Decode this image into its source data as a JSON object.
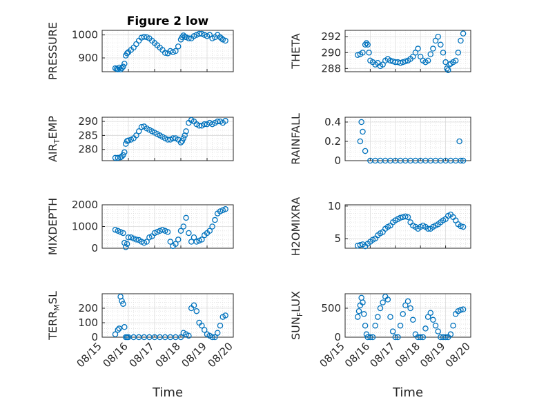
{
  "figure": {
    "title": "Figure 2 low",
    "xlabel": "Time",
    "marker_color": "#0072BD"
  },
  "chart_data": [
    {
      "type": "scatter",
      "ylabel": "PRESSURE",
      "title": "Figure 2 low",
      "xlim": [
        0,
        5
      ],
      "ylim": [
        840,
        1020
      ],
      "yticks": [
        900,
        1000
      ],
      "xticks": [
        "08/15",
        "08/16",
        "08/17",
        "08/18",
        "08/19",
        "08/20"
      ],
      "grid": true,
      "x": [
        0.5,
        0.55,
        0.6,
        0.65,
        0.7,
        0.75,
        0.8,
        0.85,
        0.9,
        0.95,
        1.0,
        1.1,
        1.2,
        1.3,
        1.4,
        1.5,
        1.6,
        1.7,
        1.8,
        1.9,
        2.0,
        2.1,
        2.2,
        2.3,
        2.4,
        2.5,
        2.6,
        2.7,
        2.8,
        2.9,
        3.0,
        3.05,
        3.1,
        3.15,
        3.2,
        3.3,
        3.4,
        3.5,
        3.6,
        3.7,
        3.8,
        3.9,
        4.0,
        4.1,
        4.2,
        4.3,
        4.4,
        4.5,
        4.55,
        4.6,
        4.7
      ],
      "y": [
        855,
        852,
        850,
        858,
        850,
        855,
        862,
        875,
        910,
        920,
        925,
        935,
        945,
        960,
        975,
        988,
        992,
        990,
        985,
        975,
        965,
        955,
        945,
        935,
        922,
        920,
        930,
        925,
        930,
        950,
        980,
        990,
        998,
        992,
        990,
        985,
        985,
        995,
        1000,
        1005,
        1005,
        1000,
        995,
        1000,
        985,
        990,
        1000,
        990,
        985,
        980,
        975
      ]
    },
    {
      "type": "scatter",
      "ylabel": "THETA",
      "xlim": [
        0,
        5
      ],
      "ylim": [
        287.6,
        292.8
      ],
      "yticks": [
        288,
        290,
        292
      ],
      "xticks": [
        "08/15",
        "08/16",
        "08/17",
        "08/18",
        "08/19",
        "08/20"
      ],
      "grid": true,
      "x": [
        0.5,
        0.6,
        0.7,
        0.8,
        0.85,
        0.9,
        0.95,
        1.0,
        1.1,
        1.2,
        1.3,
        1.4,
        1.5,
        1.6,
        1.7,
        1.8,
        1.9,
        2.0,
        2.1,
        2.2,
        2.3,
        2.4,
        2.5,
        2.6,
        2.7,
        2.8,
        2.9,
        3.0,
        3.1,
        3.2,
        3.3,
        3.4,
        3.5,
        3.6,
        3.7,
        3.8,
        3.9,
        4.0,
        4.05,
        4.1,
        4.15,
        4.2,
        4.3,
        4.4,
        4.5,
        4.6,
        4.7
      ],
      "y": [
        289.7,
        289.8,
        290.0,
        291.0,
        291.2,
        291.0,
        290.0,
        289.0,
        288.8,
        288.5,
        288.7,
        288.3,
        288.5,
        289.0,
        289.2,
        289.0,
        288.9,
        288.8,
        288.8,
        288.7,
        288.8,
        288.9,
        289.0,
        289.2,
        289.5,
        290.0,
        290.5,
        289.5,
        289.0,
        288.8,
        289.0,
        289.8,
        290.5,
        291.5,
        292.0,
        291.0,
        290.0,
        288.8,
        288.0,
        287.8,
        288.5,
        288.6,
        288.8,
        289.0,
        290.0,
        291.5,
        292.4
      ]
    },
    {
      "type": "scatter",
      "ylabel": "AIR_TEMP",
      "xlim": [
        0,
        5
      ],
      "ylim": [
        276,
        291.5
      ],
      "yticks": [
        280,
        285,
        290
      ],
      "xticks": [
        "08/15",
        "08/16",
        "08/17",
        "08/18",
        "08/19",
        "08/20"
      ],
      "grid": true,
      "x": [
        0.5,
        0.6,
        0.7,
        0.75,
        0.8,
        0.85,
        0.9,
        0.95,
        1.0,
        1.1,
        1.2,
        1.3,
        1.4,
        1.5,
        1.6,
        1.7,
        1.8,
        1.9,
        2.0,
        2.1,
        2.2,
        2.3,
        2.4,
        2.5,
        2.6,
        2.7,
        2.8,
        2.9,
        3.0,
        3.05,
        3.1,
        3.15,
        3.2,
        3.3,
        3.4,
        3.5,
        3.6,
        3.7,
        3.8,
        3.9,
        4.0,
        4.1,
        4.2,
        4.3,
        4.4,
        4.5,
        4.6,
        4.7
      ],
      "y": [
        277.0,
        277.0,
        277.2,
        277.5,
        278.0,
        279.0,
        282.0,
        283.0,
        283.2,
        283.5,
        284.0,
        285.0,
        286.5,
        288.0,
        288.2,
        287.5,
        287.0,
        286.5,
        286.0,
        285.5,
        285.0,
        284.5,
        284.0,
        283.5,
        283.5,
        284.0,
        284.0,
        283.5,
        282.5,
        283.0,
        284.0,
        285.0,
        286.5,
        289.5,
        290.5,
        290.0,
        289.0,
        288.5,
        288.5,
        289.0,
        289.0,
        289.5,
        289.0,
        289.5,
        290.0,
        290.0,
        289.5,
        290.2
      ]
    },
    {
      "type": "scatter",
      "ylabel": "RAINFALL",
      "xlim": [
        0,
        5
      ],
      "ylim": [
        0,
        0.45
      ],
      "yticks": [
        0,
        0.2,
        0.4
      ],
      "xticks": [
        "08/15",
        "08/16",
        "08/17",
        "08/18",
        "08/19",
        "08/20"
      ],
      "grid": true,
      "x": [
        0.6,
        0.65,
        0.7,
        0.8,
        1.0,
        1.2,
        1.4,
        1.6,
        1.8,
        2.0,
        2.2,
        2.4,
        2.6,
        2.8,
        3.0,
        3.2,
        3.4,
        3.6,
        3.8,
        4.0,
        4.2,
        4.4,
        4.6,
        4.7,
        4.55
      ],
      "y": [
        0.2,
        0.4,
        0.3,
        0.1,
        0,
        0,
        0,
        0,
        0,
        0,
        0,
        0,
        0,
        0,
        0,
        0,
        0,
        0,
        0,
        0,
        0,
        0,
        0,
        0,
        0.2
      ]
    },
    {
      "type": "scatter",
      "ylabel": "MIXDEPTH",
      "xlim": [
        0,
        5
      ],
      "ylim": [
        0,
        2000
      ],
      "yticks": [
        0,
        1000,
        2000
      ],
      "xticks": [
        "08/15",
        "08/16",
        "08/17",
        "08/18",
        "08/19",
        "08/20"
      ],
      "grid": true,
      "x": [
        0.5,
        0.6,
        0.7,
        0.8,
        0.85,
        0.9,
        0.95,
        1.0,
        1.1,
        1.2,
        1.3,
        1.4,
        1.5,
        1.6,
        1.7,
        1.8,
        1.9,
        2.0,
        2.1,
        2.2,
        2.3,
        2.4,
        2.5,
        2.6,
        2.7,
        2.8,
        2.9,
        3.0,
        3.1,
        3.2,
        3.3,
        3.4,
        3.5,
        3.6,
        3.7,
        3.8,
        3.9,
        4.0,
        4.1,
        4.2,
        4.3,
        4.4,
        4.5,
        4.6,
        4.7
      ],
      "y": [
        850,
        800,
        750,
        700,
        250,
        50,
        200,
        500,
        500,
        450,
        400,
        380,
        300,
        250,
        300,
        500,
        550,
        700,
        750,
        800,
        850,
        800,
        750,
        300,
        100,
        200,
        400,
        800,
        1000,
        1400,
        700,
        300,
        500,
        300,
        350,
        400,
        600,
        700,
        800,
        1000,
        1300,
        1600,
        1700,
        1750,
        1800
      ]
    },
    {
      "type": "scatter",
      "ylabel": "H2OMIXRA",
      "xlim": [
        0,
        5
      ],
      "ylim": [
        3.5,
        10.2
      ],
      "yticks": [
        5,
        10
      ],
      "xticks": [
        "08/15",
        "08/16",
        "08/17",
        "08/18",
        "08/19",
        "08/20"
      ],
      "grid": true,
      "x": [
        0.5,
        0.6,
        0.7,
        0.8,
        0.9,
        1.0,
        1.1,
        1.2,
        1.3,
        1.4,
        1.5,
        1.6,
        1.7,
        1.8,
        1.9,
        2.0,
        2.1,
        2.2,
        2.3,
        2.4,
        2.5,
        2.6,
        2.7,
        2.8,
        2.9,
        3.0,
        3.1,
        3.2,
        3.3,
        3.4,
        3.5,
        3.6,
        3.7,
        3.8,
        3.9,
        4.0,
        4.1,
        4.2,
        4.3,
        4.4,
        4.5,
        4.6,
        4.7
      ],
      "y": [
        3.9,
        4.0,
        4.1,
        3.8,
        4.2,
        4.5,
        4.8,
        5.0,
        5.5,
        5.8,
        6.0,
        6.5,
        6.8,
        7.0,
        7.5,
        7.8,
        8.0,
        8.2,
        8.3,
        8.4,
        8.3,
        7.5,
        7.0,
        6.8,
        6.5,
        6.8,
        7.0,
        6.8,
        6.5,
        6.5,
        6.8,
        7.0,
        7.2,
        7.5,
        7.8,
        8.0,
        8.5,
        8.7,
        8.3,
        7.8,
        7.2,
        6.9,
        6.8
      ]
    },
    {
      "type": "scatter",
      "ylabel": "TERR_MSL",
      "xlim": [
        0,
        5
      ],
      "ylim": [
        0,
        300
      ],
      "yticks": [
        0,
        100,
        200
      ],
      "xticks": [
        "08/15",
        "08/16",
        "08/17",
        "08/18",
        "08/19",
        "08/20"
      ],
      "grid": true,
      "x": [
        0.5,
        0.6,
        0.65,
        0.7,
        0.75,
        0.8,
        0.85,
        0.9,
        0.95,
        1.0,
        1.2,
        1.4,
        1.6,
        1.8,
        2.0,
        2.2,
        2.4,
        2.6,
        2.8,
        3.0,
        3.1,
        3.2,
        3.3,
        3.4,
        3.5,
        3.6,
        3.7,
        3.8,
        3.9,
        4.0,
        4.1,
        4.2,
        4.3,
        4.4,
        4.5,
        4.6,
        4.7
      ],
      "y": [
        20,
        50,
        60,
        280,
        250,
        230,
        70,
        0,
        0,
        0,
        0,
        0,
        0,
        0,
        0,
        0,
        0,
        0,
        0,
        0,
        30,
        20,
        10,
        200,
        220,
        180,
        100,
        80,
        50,
        20,
        10,
        0,
        0,
        30,
        80,
        140,
        150
      ]
    },
    {
      "type": "scatter",
      "ylabel": "SUN_FLUX",
      "xlim": [
        0,
        5
      ],
      "ylim": [
        0,
        750
      ],
      "yticks": [
        0,
        500
      ],
      "xticks": [
        "08/15",
        "08/16",
        "08/17",
        "08/18",
        "08/19",
        "08/20"
      ],
      "grid": true,
      "x": [
        0.5,
        0.55,
        0.6,
        0.65,
        0.7,
        0.75,
        0.8,
        0.85,
        0.9,
        1.0,
        1.1,
        1.2,
        1.3,
        1.4,
        1.5,
        1.6,
        1.7,
        1.8,
        1.9,
        2.0,
        2.1,
        2.2,
        2.3,
        2.4,
        2.5,
        2.6,
        2.7,
        2.8,
        2.9,
        3.0,
        3.1,
        3.2,
        3.3,
        3.4,
        3.5,
        3.6,
        3.7,
        3.8,
        3.9,
        4.0,
        4.1,
        4.2,
        4.3,
        4.4,
        4.5,
        4.6,
        4.7
      ],
      "y": [
        350,
        450,
        550,
        680,
        600,
        400,
        200,
        50,
        0,
        0,
        0,
        200,
        350,
        500,
        600,
        700,
        650,
        350,
        100,
        0,
        0,
        200,
        400,
        550,
        620,
        500,
        300,
        50,
        0,
        0,
        0,
        150,
        350,
        420,
        300,
        200,
        100,
        0,
        0,
        0,
        0,
        50,
        200,
        400,
        450,
        470,
        480
      ]
    }
  ]
}
